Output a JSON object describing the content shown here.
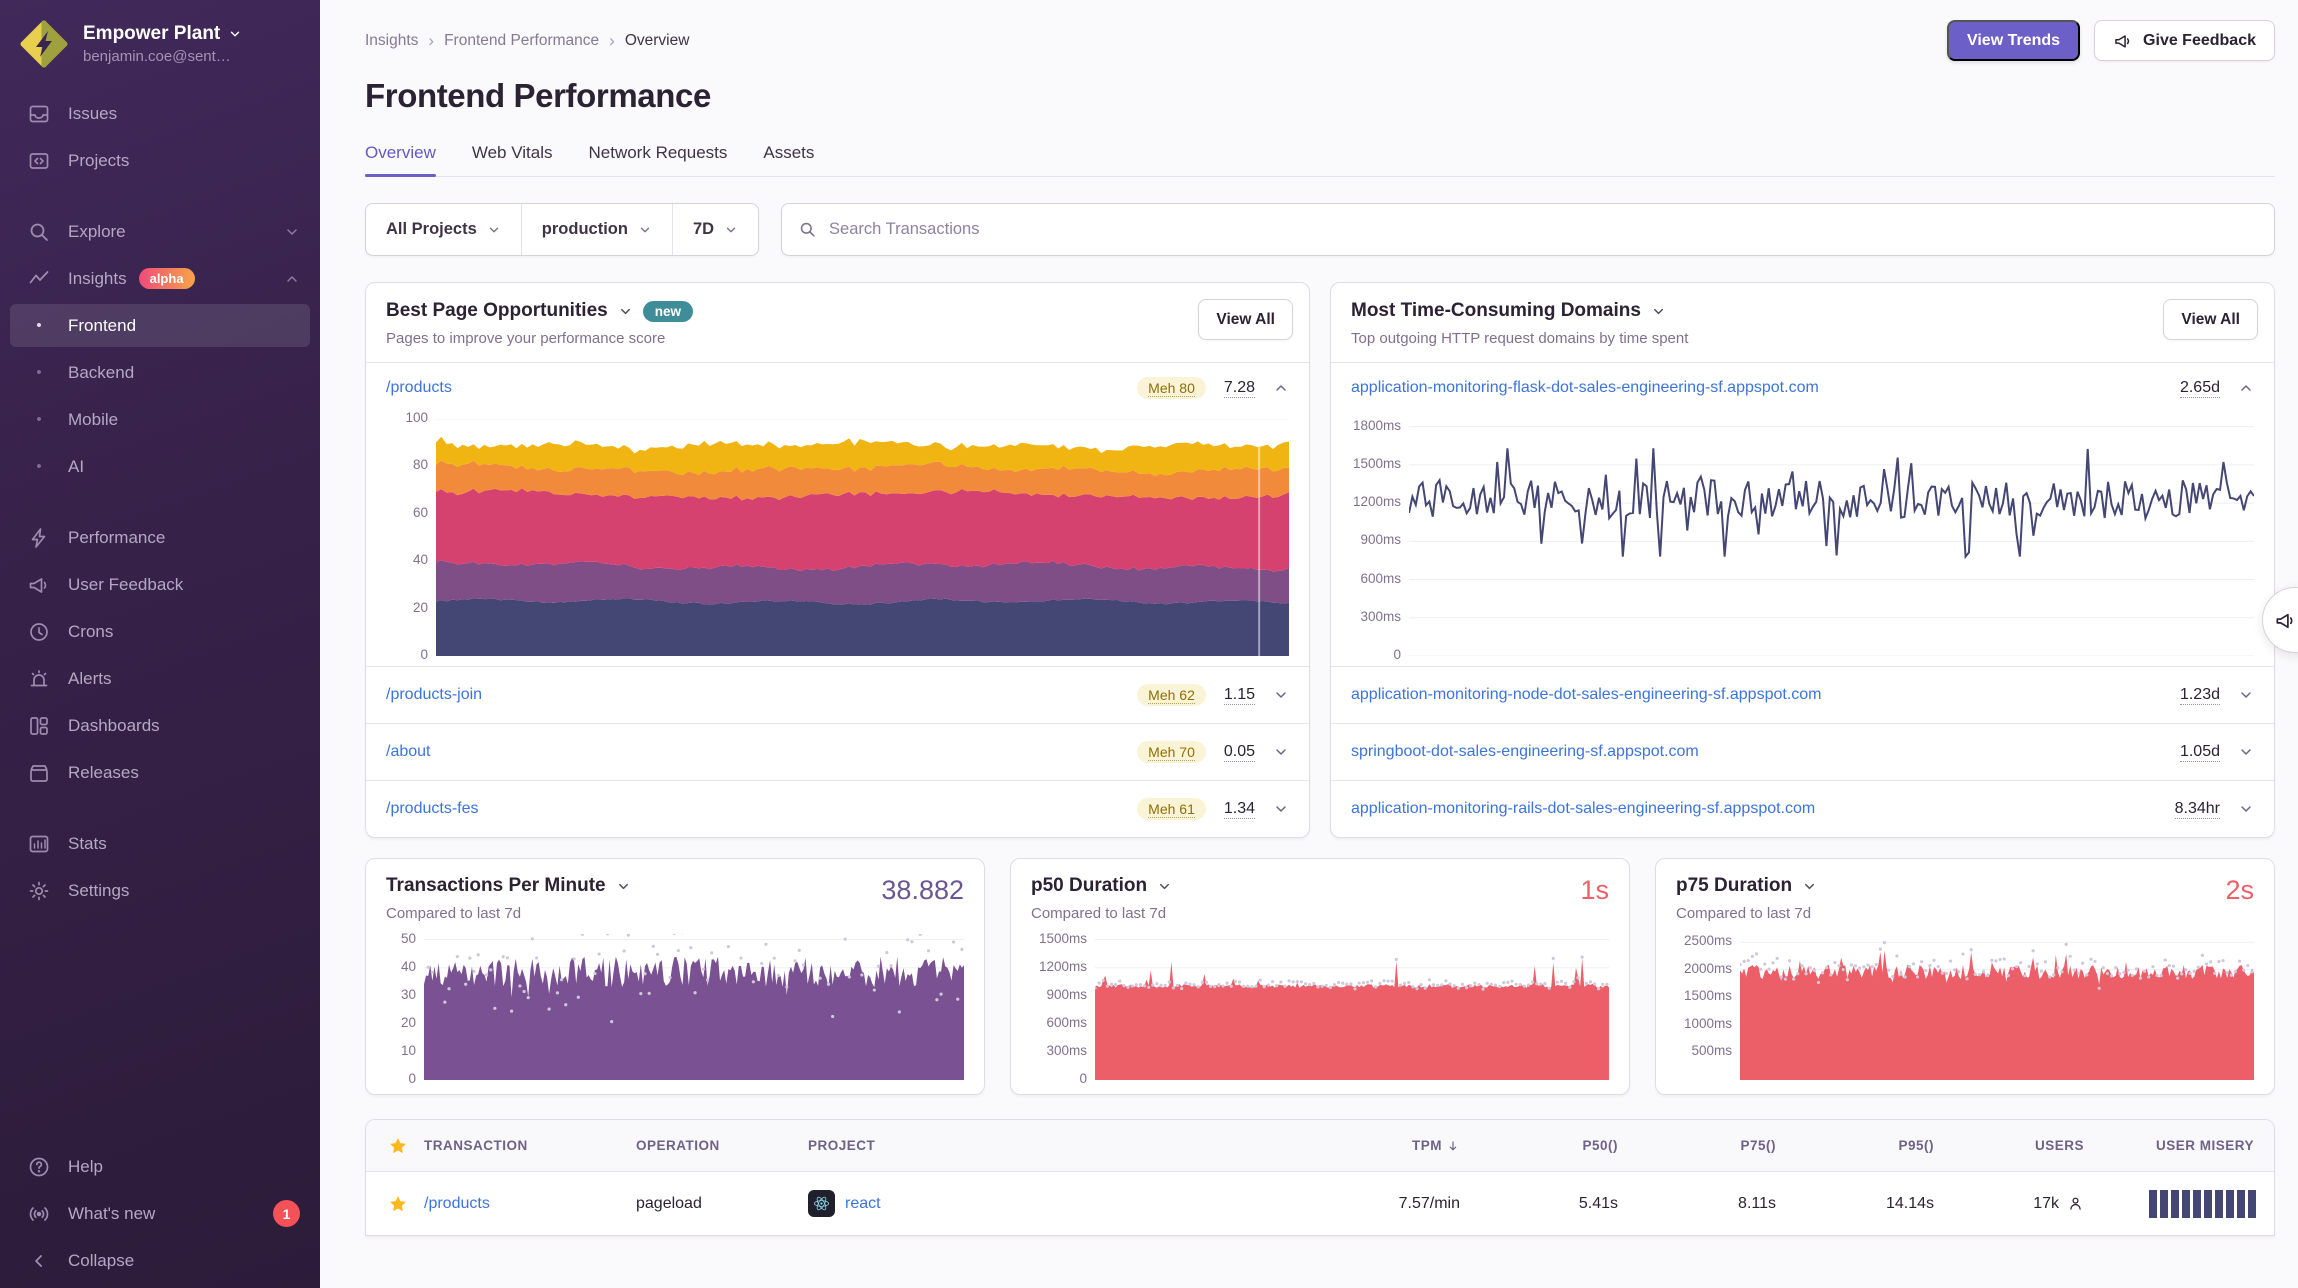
{
  "org": {
    "name": "Empower Plant",
    "email": "benjamin.coe@sent…"
  },
  "sidebar": {
    "items": [
      {
        "label": "Issues"
      },
      {
        "label": "Projects"
      },
      {
        "label": "Explore"
      },
      {
        "label": "Insights",
        "badge": "alpha"
      },
      {
        "label": "Frontend"
      },
      {
        "label": "Backend"
      },
      {
        "label": "Mobile"
      },
      {
        "label": "AI"
      },
      {
        "label": "Performance"
      },
      {
        "label": "User Feedback"
      },
      {
        "label": "Crons"
      },
      {
        "label": "Alerts"
      },
      {
        "label": "Dashboards"
      },
      {
        "label": "Releases"
      },
      {
        "label": "Stats"
      },
      {
        "label": "Settings"
      }
    ],
    "footer": {
      "help": "Help",
      "whats_new": "What's new",
      "whats_new_badge": "1",
      "collapse": "Collapse"
    }
  },
  "header": {
    "breadcrumbs": [
      "Insights",
      "Frontend Performance",
      "Overview"
    ],
    "title": "Frontend Performance",
    "view_trends": "View Trends",
    "give_feedback": "Give Feedback"
  },
  "tabs": [
    {
      "label": "Overview"
    },
    {
      "label": "Web Vitals"
    },
    {
      "label": "Network Requests"
    },
    {
      "label": "Assets"
    }
  ],
  "filters": {
    "projects": "All Projects",
    "environment": "production",
    "date_range": "7D",
    "search_placeholder": "Search Transactions"
  },
  "opportunities": {
    "title": "Best Page Opportunities",
    "badge": "new",
    "subtitle": "Pages to improve your performance score",
    "view_all": "View All",
    "rows": [
      {
        "page": "/products",
        "badge": "Meh 80",
        "value": "7.28"
      },
      {
        "page": "/products-join",
        "badge": "Meh 62",
        "value": "1.15"
      },
      {
        "page": "/about",
        "badge": "Meh 70",
        "value": "0.05"
      },
      {
        "page": "/products-fes",
        "badge": "Meh 61",
        "value": "1.34"
      }
    ]
  },
  "domains": {
    "title": "Most Time-Consuming Domains",
    "subtitle": "Top outgoing HTTP request domains by time spent",
    "view_all": "View All",
    "rows": [
      {
        "domain": "application-monitoring-flask-dot-sales-engineering-sf.appspot.com",
        "value": "2.65d"
      },
      {
        "domain": "application-monitoring-node-dot-sales-engineering-sf.appspot.com",
        "value": "1.23d"
      },
      {
        "domain": "springboot-dot-sales-engineering-sf.appspot.com",
        "value": "1.05d"
      },
      {
        "domain": "application-monitoring-rails-dot-sales-engineering-sf.appspot.com",
        "value": "8.34hr"
      }
    ]
  },
  "metrics": {
    "tpm": {
      "title": "Transactions Per Minute",
      "subtitle": "Compared to last 7d",
      "value": "38.882"
    },
    "p50": {
      "title": "p50 Duration",
      "subtitle": "Compared to last 7d",
      "value": "1s"
    },
    "p75": {
      "title": "p75 Duration",
      "subtitle": "Compared to last 7d",
      "value": "2s"
    }
  },
  "table": {
    "columns": [
      "TRANSACTION",
      "OPERATION",
      "PROJECT",
      "TPM",
      "P50()",
      "P75()",
      "P95()",
      "USERS",
      "USER MISERY"
    ],
    "sorted_by": "TPM",
    "row": {
      "transaction": "/products",
      "operation": "pageload",
      "project": "react",
      "tpm": "7.57/min",
      "p50": "5.41s",
      "p75": "8.11s",
      "p95": "14.14s",
      "users": "17k",
      "misery_bars": 10
    }
  },
  "colors": {
    "accent_purple": "#6c5fc7",
    "link_blue": "#3c74dd",
    "red": "#ee6066",
    "navy": "#444674",
    "tpm_purple": "#7a5192",
    "compare_dot": "#cfc8dc",
    "new_badge_teal": "#3e8d99"
  },
  "chart_data": [
    {
      "id": "opportunity_breakdown",
      "type": "area",
      "stacked": true,
      "context": "/products performance score breakdown over 7D",
      "ylim": [
        0,
        100
      ],
      "yticks": [
        [
          100,
          "100"
        ],
        [
          80,
          "80"
        ],
        [
          60,
          "60"
        ],
        [
          40,
          "40"
        ],
        [
          20,
          "20"
        ],
        [
          0,
          "0"
        ]
      ],
      "xaxis_labels": "none",
      "legend": "none",
      "series": [
        {
          "name": "layer-1-bottom",
          "color": "#444674",
          "mean": 23,
          "amp": 0.8
        },
        {
          "name": "layer-2",
          "color": "#7f4e87",
          "mean": 15,
          "amp": 1.2
        },
        {
          "name": "layer-3",
          "color": "#d5426f",
          "mean": 30,
          "amp": 1.2
        },
        {
          "name": "layer-4",
          "color": "#f28a3c",
          "mean": 11,
          "amp": 1.0
        },
        {
          "name": "layer-5-top",
          "color": "#f0b513",
          "mean": 10,
          "amp": 1.5
        }
      ],
      "stack_top_approx": 89
    },
    {
      "id": "domain_duration",
      "type": "line",
      "context": "avg duration of requests to flask domain, total 2.65d",
      "color": "#444674",
      "ylim": [
        0,
        1860
      ],
      "yticks": [
        [
          1800,
          "1800ms"
        ],
        [
          1500,
          "1500ms"
        ],
        [
          1200,
          "1200ms"
        ],
        [
          900,
          "900ms"
        ],
        [
          600,
          "600ms"
        ],
        [
          300,
          "300ms"
        ],
        [
          0,
          "0"
        ]
      ],
      "mean": 1230,
      "min": 780,
      "max": 1630,
      "dev": 150,
      "points": 250
    },
    {
      "id": "tpm_chart",
      "type": "area",
      "context": "Transactions Per Minute, current 38.882, compared to last 7d (grey dots)",
      "color": "#7a5192",
      "dot_color": "#cfc8dc",
      "ylim": [
        0,
        52
      ],
      "yticks": [
        [
          50,
          "50"
        ],
        [
          40,
          "40"
        ],
        [
          30,
          "30"
        ],
        [
          20,
          "20"
        ],
        [
          10,
          "10"
        ],
        [
          0,
          "0"
        ]
      ],
      "base": 33,
      "jitter": 11,
      "spike_chance": 0.0,
      "spike_max": 0,
      "dip_chance": 0.06,
      "dip_max": 6,
      "points": 260
    },
    {
      "id": "p50_chart",
      "type": "area",
      "context": "p50 Duration ~1s, compared to last 7d (grey dots)",
      "color": "#ed5f68",
      "dot_color": "#cfc8dc",
      "ylim": [
        0,
        1560
      ],
      "yticks": [
        [
          1500,
          "1500ms"
        ],
        [
          1200,
          "1200ms"
        ],
        [
          900,
          "900ms"
        ],
        [
          600,
          "600ms"
        ],
        [
          300,
          "300ms"
        ],
        [
          0,
          "0"
        ]
      ],
      "base": 985,
      "jitter": 40,
      "spike_chance": 0.1,
      "spike_max": 330,
      "dip_chance": 0,
      "dip_max": 0,
      "points": 250
    },
    {
      "id": "p75_chart",
      "type": "area",
      "context": "p75 Duration ~2s, compared to last 7d (grey dots)",
      "color": "#ed5f68",
      "dot_color": "#cfc8dc",
      "ylim": [
        0,
        2650
      ],
      "yticks": [
        [
          2500,
          "2500ms"
        ],
        [
          2000,
          "2000ms"
        ],
        [
          1500,
          "1500ms"
        ],
        [
          1000,
          "1000ms"
        ],
        [
          500,
          "500ms"
        ]
      ],
      "base": 1830,
      "jitter": 260,
      "spike_chance": 0.06,
      "spike_max": 420,
      "dip_chance": 0.05,
      "dip_max": 160,
      "points": 250
    }
  ]
}
